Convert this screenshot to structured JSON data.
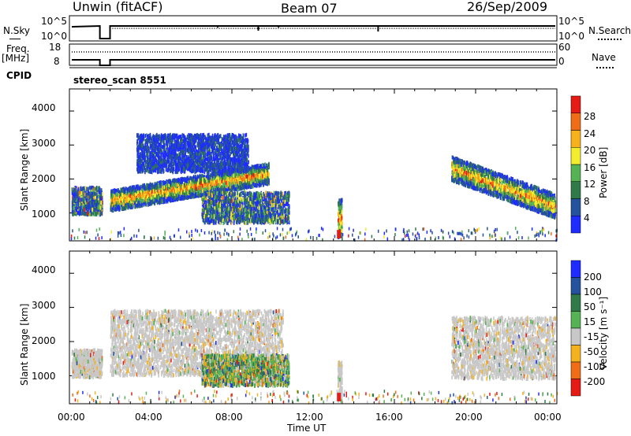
{
  "header": {
    "station": "Unwin (fitACF)",
    "beam": "Beam 07",
    "date": "26/Sep/2009"
  },
  "status_panel": {
    "nsky_label": "N.Sky",
    "nsearch_label": "N.Search",
    "noise_ticks_left": [
      "10^5",
      "10^0"
    ],
    "noise_ticks_right": [
      "10^5",
      "10^0"
    ],
    "freq_label_1": "Freq.",
    "freq_label_2": "[MHz]",
    "freq_ticks": [
      "18",
      "8"
    ],
    "nave_label": "Nave",
    "nave_ticks": [
      "60",
      "0"
    ],
    "cpid_label": "CPID",
    "cpid_value": "stereo_scan 8551"
  },
  "chart_data": [
    {
      "type": "heatmap",
      "parameter": "power",
      "ylabel": "Slant Range [km]",
      "y_ticks": [
        "1000",
        "2000",
        "3000",
        "4000"
      ],
      "ylim": [
        180,
        4650
      ],
      "xlim": [
        0,
        24
      ],
      "colorbar_label": "Power [dB]",
      "colorbar_ticks": [
        "4",
        "8",
        "12",
        "16",
        "20",
        "24",
        "28"
      ],
      "colorbar_colors": [
        "#1f2cff",
        "#25529c",
        "#2f7a48",
        "#55b255",
        "#f2ee2f",
        "#f7b11d",
        "#f06d17",
        "#e41c15"
      ],
      "regions": [
        {
          "t": [
            0.1,
            1.6
          ],
          "range": [
            950,
            1750
          ],
          "level": "mixed-high"
        },
        {
          "t": [
            2.0,
            9.8
          ],
          "range": [
            1000,
            2400
          ],
          "level": "high-band"
        },
        {
          "t": [
            3.3,
            8.8
          ],
          "range": [
            2200,
            3300
          ],
          "level": "low"
        },
        {
          "t": [
            6.5,
            10.8
          ],
          "range": [
            700,
            1600
          ],
          "level": "mixed"
        },
        {
          "t": [
            13.2,
            13.4
          ],
          "range": [
            250,
            1400
          ],
          "level": "high"
        },
        {
          "t": [
            18.8,
            23.9
          ],
          "range": [
            900,
            2700
          ],
          "level": "high-band"
        }
      ]
    },
    {
      "type": "heatmap",
      "parameter": "velocity",
      "ylabel": "Slant Range [km]",
      "y_ticks": [
        "1000",
        "2000",
        "3000",
        "4000"
      ],
      "ylim": [
        180,
        4650
      ],
      "xlim": [
        0,
        24
      ],
      "colorbar_label": "Velocity [m s⁻¹]",
      "colorbar_ticks": [
        "200",
        "100",
        "50",
        "15",
        "-15",
        "-50",
        "-100",
        "-200"
      ],
      "colorbar_colors": [
        "#1f2cff",
        "#25529c",
        "#2f7a48",
        "#55b255",
        "#c8c8c8",
        "#f2b11d",
        "#f06d17",
        "#e41c15"
      ],
      "regions": [
        {
          "t": [
            0.1,
            1.6
          ],
          "range": [
            950,
            1750
          ],
          "level": "ground-scatter"
        },
        {
          "t": [
            2.0,
            10.5
          ],
          "range": [
            1000,
            2900
          ],
          "level": "ground-scatter"
        },
        {
          "t": [
            6.5,
            10.8
          ],
          "range": [
            700,
            1600
          ],
          "level": "mixed"
        },
        {
          "t": [
            13.2,
            13.4
          ],
          "range": [
            250,
            1400
          ],
          "level": "ground-scatter"
        },
        {
          "t": [
            18.8,
            23.9
          ],
          "range": [
            900,
            2700
          ],
          "level": "ground-scatter"
        }
      ]
    }
  ],
  "x_axis": {
    "label": "Time UT",
    "ticks": [
      "00:00",
      "04:00",
      "08:00",
      "12:00",
      "16:00",
      "20:00",
      "00:00"
    ]
  }
}
